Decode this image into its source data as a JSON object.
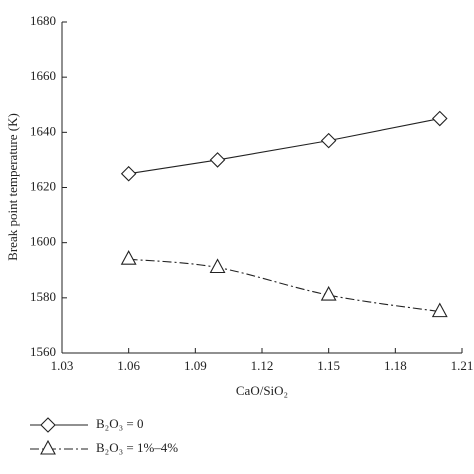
{
  "chart_data": {
    "type": "line",
    "x_label": "CaO/SiO₂",
    "y_label": "Break point temperature (K)",
    "xlim": [
      1.03,
      1.21
    ],
    "xticks": [
      1.03,
      1.06,
      1.09,
      1.12,
      1.15,
      1.18,
      1.21
    ],
    "ylim": [
      1560,
      1680
    ],
    "yticks": [
      1560,
      1580,
      1600,
      1620,
      1640,
      1660,
      1680
    ],
    "x": [
      1.06,
      1.1,
      1.15,
      1.2
    ],
    "series": [
      {
        "name": "B₂O₃ = 0",
        "color": "#222222",
        "marker": "diamond",
        "dash": "solid",
        "values": [
          1625,
          1630,
          1637,
          1645
        ]
      },
      {
        "name": "B₂O₃ = 1%–4%",
        "color": "#222222",
        "marker": "triangle",
        "dash": "dashdot",
        "values": [
          1594,
          1591,
          1581,
          1575
        ]
      }
    ]
  }
}
